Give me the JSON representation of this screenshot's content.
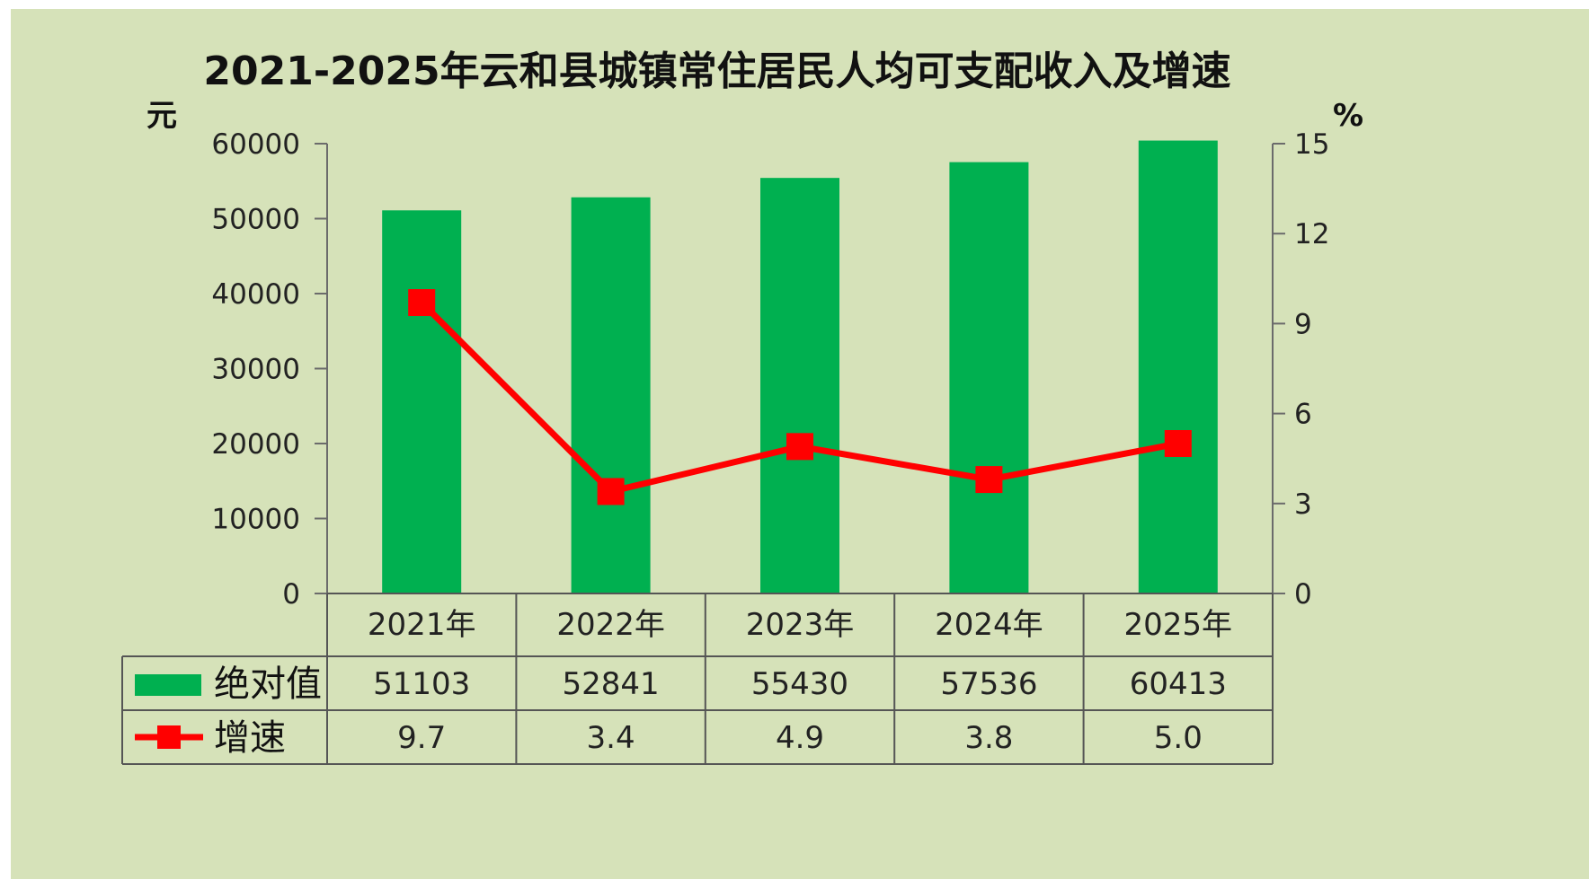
{
  "chart_data": {
    "type": "bar",
    "title": "2021-2025年云和县城镇常住居民人均可支配收入及增速",
    "y_left_unit": "元",
    "y_right_unit": "%",
    "categories": [
      "2021年",
      "2022年",
      "2023年",
      "2024年",
      "2025年"
    ],
    "y_left_ticks": [
      "0",
      "10000",
      "20000",
      "30000",
      "40000",
      "50000",
      "60000"
    ],
    "y_right_ticks": [
      "0",
      "3",
      "6",
      "9",
      "12",
      "15"
    ],
    "ylim": [
      0,
      60000
    ],
    "y2lim": [
      0,
      15
    ],
    "grid": false,
    "legend_position": "data table below chart",
    "series": [
      {
        "name": "绝对值",
        "type": "bar",
        "axis": "left",
        "color": "#00b050",
        "values": [
          51103,
          52841,
          55430,
          57536,
          60413
        ],
        "labels": [
          "51103",
          "52841",
          "55430",
          "57536",
          "60413"
        ]
      },
      {
        "name": "增速",
        "type": "line",
        "axis": "right",
        "color": "#ff0000",
        "values": [
          9.7,
          3.4,
          4.9,
          3.8,
          5.0
        ],
        "labels": [
          "9.7",
          "3.4",
          "4.9",
          "3.8",
          "5.0"
        ]
      }
    ],
    "background_color": "#d6e2b9"
  }
}
